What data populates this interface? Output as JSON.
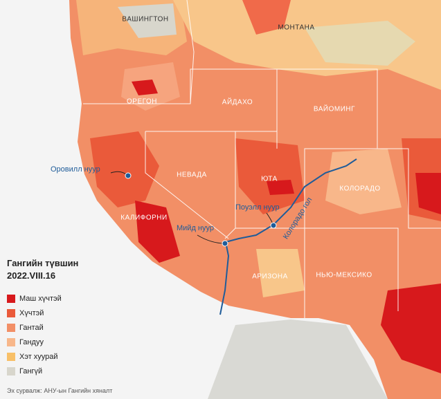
{
  "states": [
    "ВАШИНГТОН",
    "МОНТАНА",
    "ОРЕГОН",
    "АЙДАХО",
    "ВАЙОМИНГ",
    "НЕВАДА",
    "ЮТА",
    "КОЛОРАДО",
    "КАЛИФОРНИ",
    "АРИЗОНА",
    "НЬЮ-МЕКСИКО"
  ],
  "lakes": [
    "Оровилл нуур",
    "Мийд нуур",
    "Поуэлл нуур"
  ],
  "river": "Колорадо гол",
  "legend": {
    "title": "Гангийн түвшин",
    "date": "2022.VIII.16",
    "items": [
      {
        "label": "Маш хүчтэй",
        "color": "#d7191c"
      },
      {
        "label": "Хүчтэй",
        "color": "#ea5a3a"
      },
      {
        "label": "Гантай",
        "color": "#f28f66"
      },
      {
        "label": "Гандуу",
        "color": "#f8b78a"
      },
      {
        "label": "Хэт хуурай",
        "color": "#f8c068"
      },
      {
        "label": "Гангүй",
        "color": "#d8d6cc"
      }
    ]
  },
  "source": "Эх сурвалж: АНУ-ын Гангийн хяналт"
}
